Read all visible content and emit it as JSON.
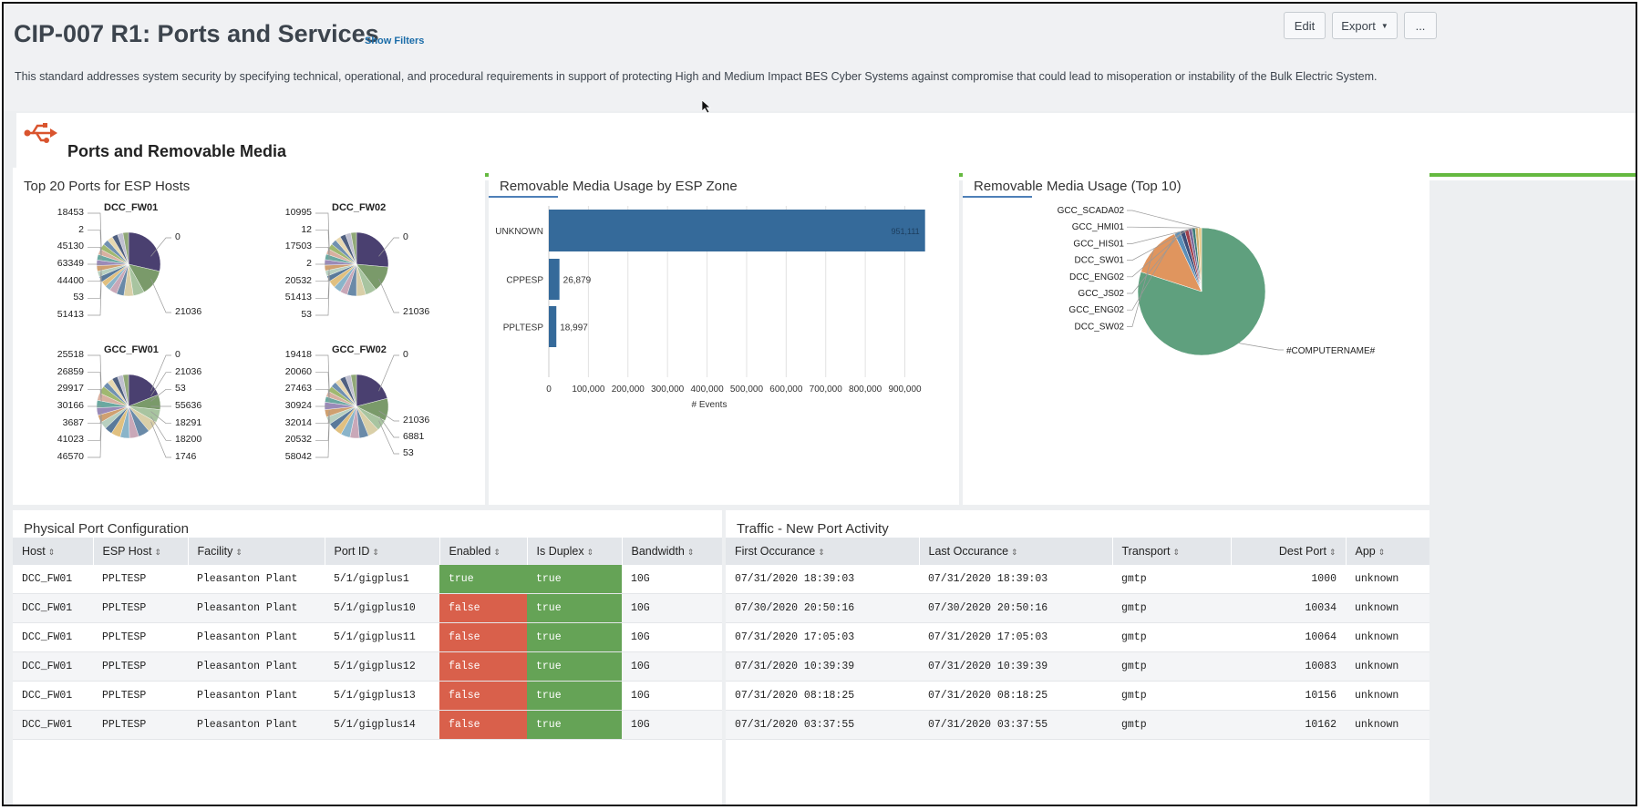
{
  "header": {
    "title": "CIP-007 R1: Ports and Services",
    "show_filters": "Show Filters",
    "edit_label": "Edit",
    "export_label": "Export",
    "more_label": "...",
    "description": "This standard addresses system security by specifying technical, operational, and procedural requirements in support of protecting High and Medium Impact BES Cyber Systems against compromise that could lead to misoperation or instability of the Bulk Electric System."
  },
  "section": {
    "title": "Ports and Removable Media",
    "icon": "usb-icon",
    "rule_color": "#65b940"
  },
  "panels": {
    "ports": {
      "title": "Top 20 Ports for ESP Hosts",
      "pies": [
        {
          "title": "DCC_FW01",
          "left_labels": [
            "18453",
            "2",
            "45130",
            "63349",
            "44400",
            "53",
            "51413"
          ],
          "right_labels": [
            "0",
            "21036"
          ]
        },
        {
          "title": "DCC_FW02",
          "left_labels": [
            "10995",
            "12",
            "17503",
            "2",
            "20532",
            "51413",
            "53"
          ],
          "right_labels": [
            "0",
            "21036"
          ]
        },
        {
          "title": "GCC_FW01",
          "left_labels": [
            "25518",
            "26859",
            "29917",
            "30166",
            "3687",
            "41023",
            "46570"
          ],
          "right_labels": [
            "0",
            "21036",
            "53",
            "55636",
            "18291",
            "18200",
            "1746"
          ]
        },
        {
          "title": "GCC_FW02",
          "left_labels": [
            "19418",
            "20060",
            "27463",
            "30924",
            "32014",
            "20532",
            "58042"
          ],
          "right_labels": [
            "0",
            "21036",
            "6881",
            "53"
          ]
        }
      ]
    },
    "zone": {
      "title": "Removable Media Usage by ESP Zone"
    },
    "top10": {
      "title": "Removable Media Usage (Top 10)"
    },
    "physical": {
      "title": "Physical Port Configuration",
      "columns": [
        "Host",
        "ESP Host",
        "Facility",
        "Port ID",
        "Enabled",
        "Is Duplex",
        "Bandwidth"
      ],
      "rows": [
        [
          "DCC_FW01",
          "PPLTESP",
          "Pleasanton Plant",
          "5/1/gigplus1",
          "true",
          "true",
          "10G"
        ],
        [
          "DCC_FW01",
          "PPLTESP",
          "Pleasanton Plant",
          "5/1/gigplus10",
          "false",
          "true",
          "10G"
        ],
        [
          "DCC_FW01",
          "PPLTESP",
          "Pleasanton Plant",
          "5/1/gigplus11",
          "false",
          "true",
          "10G"
        ],
        [
          "DCC_FW01",
          "PPLTESP",
          "Pleasanton Plant",
          "5/1/gigplus12",
          "false",
          "true",
          "10G"
        ],
        [
          "DCC_FW01",
          "PPLTESP",
          "Pleasanton Plant",
          "5/1/gigplus13",
          "false",
          "true",
          "10G"
        ],
        [
          "DCC_FW01",
          "PPLTESP",
          "Pleasanton Plant",
          "5/1/gigplus14",
          "false",
          "true",
          "10G"
        ]
      ],
      "status_colors": {
        "true": "#65a356",
        "false": "#d9604b"
      }
    },
    "traffic": {
      "title": "Traffic - New Port Activity",
      "columns": [
        "First Occurance",
        "Last Occurance",
        "Transport",
        "Dest Port",
        "App"
      ],
      "rows": [
        [
          "07/31/2020 18:39:03",
          "07/31/2020 18:39:03",
          "gmtp",
          "1000",
          "unknown"
        ],
        [
          "07/30/2020 20:50:16",
          "07/30/2020 20:50:16",
          "gmtp",
          "10034",
          "unknown"
        ],
        [
          "07/31/2020 17:05:03",
          "07/31/2020 17:05:03",
          "gmtp",
          "10064",
          "unknown"
        ],
        [
          "07/31/2020 10:39:39",
          "07/31/2020 10:39:39",
          "gmtp",
          "10083",
          "unknown"
        ],
        [
          "07/31/2020 08:18:25",
          "07/31/2020 08:18:25",
          "gmtp",
          "10156",
          "unknown"
        ],
        [
          "07/31/2020 03:37:55",
          "07/31/2020 03:37:55",
          "gmtp",
          "10162",
          "unknown"
        ]
      ]
    }
  },
  "chart_data": [
    {
      "type": "bar",
      "orientation": "horizontal",
      "title": "Removable Media Usage by ESP Zone",
      "categories": [
        "UNKNOWN",
        "CPPESP",
        "PPLTESP"
      ],
      "values": [
        951111,
        26879,
        18997
      ],
      "value_labels": [
        "951,111",
        "26,879",
        "18,997"
      ],
      "xlabel": "# Events",
      "xlim": [
        0,
        900000
      ],
      "ticks": [
        0,
        100000,
        200000,
        300000,
        400000,
        500000,
        600000,
        700000,
        800000,
        900000
      ],
      "tick_labels": [
        "0",
        "100,000",
        "200,000",
        "300,000",
        "400,000",
        "500,000",
        "600,000",
        "700,000",
        "800,000",
        "900,000"
      ],
      "color": "#356a9a"
    },
    {
      "type": "pie",
      "title": "Removable Media Usage (Top 10)",
      "labels": [
        "#COMPUTERNAME#",
        "DCC_SW02",
        "GCC_ENG02",
        "GCC_JS02",
        "DCC_ENG02",
        "DCC_SW01",
        "GCC_HIS01",
        "GCC_HMI01",
        "GCC_SCADA02"
      ],
      "values": [
        80,
        13,
        1.5,
        1.2,
        1.0,
        0.9,
        0.8,
        0.8,
        0.8
      ],
      "colors": [
        "#5fa07e",
        "#e0955e",
        "#5b8fb9",
        "#3d4f7a",
        "#a03f4a",
        "#7a6a9a",
        "#3e7e7a",
        "#d0b070",
        "#e8c98a"
      ]
    }
  ]
}
